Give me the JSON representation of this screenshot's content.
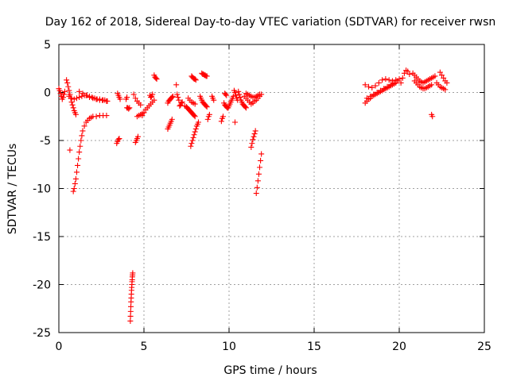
{
  "chart_data": {
    "type": "scatter",
    "title": "Day 162 of 2018, Sidereal Day-to-day VTEC variation (SDTVAR) for receiver rwsn",
    "xlabel": "GPS time / hours",
    "ylabel": "SDTVAR / TECUs",
    "xlim": [
      0,
      25
    ],
    "ylim": [
      -25,
      5
    ],
    "xticks": [
      0,
      5,
      10,
      15,
      20,
      25
    ],
    "yticks": [
      5,
      0,
      -5,
      -10,
      -15,
      -20,
      -25
    ],
    "grid": true,
    "marker": "+",
    "color": "#ff0000",
    "segments": [
      {
        "name": "arc-0.0",
        "x": [
          0.0,
          0.05,
          0.1,
          0.15,
          0.2,
          0.25,
          0.3,
          0.35
        ],
        "y": [
          0.4,
          0.2,
          -0.1,
          -0.4,
          -0.7,
          -0.5,
          -0.2,
          0.1
        ]
      },
      {
        "name": "arc-0.5",
        "x": [
          0.45,
          0.5,
          0.55,
          0.6,
          0.65,
          0.7,
          0.75,
          0.8,
          0.85,
          0.9,
          0.95,
          1.0
        ],
        "y": [
          1.3,
          1.0,
          0.6,
          0.2,
          -0.2,
          -0.6,
          -1.0,
          -1.3,
          -1.6,
          -1.9,
          -2.1,
          -2.3
        ]
      },
      {
        "name": "flat-0.6-2.8",
        "x": [
          0.6,
          0.75,
          0.9,
          1.05,
          1.2,
          1.35,
          1.5,
          1.65,
          1.8,
          1.95,
          2.1,
          2.25,
          2.4,
          2.55,
          2.7,
          2.85
        ],
        "y": [
          -0.4,
          -0.6,
          -0.7,
          -0.6,
          -0.5,
          -0.4,
          -0.3,
          -0.3,
          -0.4,
          -0.5,
          -0.6,
          -0.7,
          -0.7,
          -0.8,
          -0.8,
          -0.9
        ]
      },
      {
        "name": "flat-1.2-2.9",
        "x": [
          1.2,
          1.4,
          1.6,
          1.8,
          2.0,
          2.2,
          2.4,
          2.6,
          2.8
        ],
        "y": [
          0.1,
          -0.1,
          -0.3,
          -0.5,
          -0.6,
          -0.7,
          -0.8,
          -0.8,
          -0.9
        ]
      },
      {
        "name": "recovery",
        "x": [
          0.85,
          0.9,
          0.95,
          1.0,
          1.05,
          1.1,
          1.15,
          1.2,
          1.25,
          1.3,
          1.35,
          1.4,
          1.5,
          1.6,
          1.7,
          1.8,
          1.9,
          2.0,
          2.2,
          2.4,
          2.6,
          2.8
        ],
        "y": [
          -10.3,
          -10.0,
          -9.5,
          -9.0,
          -8.3,
          -7.6,
          -6.9,
          -6.2,
          -5.6,
          -5.0,
          -4.5,
          -4.0,
          -3.5,
          -3.1,
          -2.9,
          -2.7,
          -2.6,
          -2.5,
          -2.5,
          -2.4,
          -2.4,
          -2.4
        ]
      },
      {
        "name": "single-0.6",
        "x": [
          0.65
        ],
        "y": [
          -6.0
        ]
      },
      {
        "name": "arc-3.4",
        "x": [
          3.4,
          3.45,
          3.5,
          3.55
        ],
        "y": [
          -5.3,
          -5.1,
          -4.9,
          -4.8
        ]
      },
      {
        "name": "arc-3.5",
        "x": [
          3.45,
          3.5,
          3.55,
          3.6
        ],
        "y": [
          -0.1,
          -0.3,
          -0.5,
          -0.7
        ]
      },
      {
        "name": "arc-3.9",
        "x": [
          3.95,
          4.0
        ],
        "y": [
          -0.7,
          -0.5
        ]
      },
      {
        "name": "arc-4.0",
        "x": [
          4.0,
          4.05,
          4.1,
          4.15
        ],
        "y": [
          -1.6,
          -1.6,
          -1.7,
          -1.6
        ]
      },
      {
        "name": "arc-4.2-neg",
        "x": [
          4.2,
          4.21,
          4.22,
          4.23,
          4.24,
          4.25,
          4.26,
          4.27,
          4.28,
          4.29,
          4.3,
          4.31,
          4.32,
          4.33,
          4.34
        ],
        "y": [
          -23.8,
          -23.3,
          -22.8,
          -22.3,
          -21.8,
          -21.4,
          -21.0,
          -20.6,
          -20.3,
          -20.0,
          -19.7,
          -19.5,
          -19.2,
          -19.0,
          -18.8
        ]
      },
      {
        "name": "arc-4.6",
        "x": [
          4.5,
          4.55,
          4.6,
          4.65
        ],
        "y": [
          -5.2,
          -5.0,
          -4.8,
          -4.6
        ]
      },
      {
        "name": "arc-4.5",
        "x": [
          4.4,
          4.5,
          4.6,
          4.7,
          4.8
        ],
        "y": [
          -0.2,
          -0.6,
          -0.9,
          -1.1,
          -1.3
        ]
      },
      {
        "name": "arc-4.6b",
        "x": [
          4.6,
          4.7,
          4.8,
          4.9,
          5.0
        ],
        "y": [
          -2.5,
          -2.4,
          -2.3,
          -2.2,
          -2.1
        ]
      },
      {
        "name": "arc-5.0",
        "x": [
          4.9,
          5.0,
          5.1,
          5.2,
          5.3,
          5.4,
          5.5,
          5.6
        ],
        "y": [
          -2.4,
          -2.1,
          -1.8,
          -1.6,
          -1.4,
          -1.2,
          -1.0,
          -0.8
        ]
      },
      {
        "name": "arc-5.4",
        "x": [
          5.35,
          5.4,
          5.45,
          5.5
        ],
        "y": [
          -0.3,
          -0.5,
          -0.4,
          -0.2
        ]
      },
      {
        "name": "arc-5.7",
        "x": [
          5.6,
          5.65,
          5.7,
          5.75
        ],
        "y": [
          1.8,
          1.6,
          1.5,
          1.4
        ]
      },
      {
        "name": "arc-6.5",
        "x": [
          6.4,
          6.45,
          6.5,
          6.55,
          6.6,
          6.65
        ],
        "y": [
          -3.8,
          -3.6,
          -3.4,
          -3.2,
          -3.0,
          -2.8
        ]
      },
      {
        "name": "arc-6.5b",
        "x": [
          6.4,
          6.45,
          6.5,
          6.55,
          6.6,
          6.65,
          6.7
        ],
        "y": [
          -1.1,
          -0.9,
          -0.8,
          -0.7,
          -0.6,
          -0.5,
          -0.4
        ]
      },
      {
        "name": "arc-7.0",
        "x": [
          6.95,
          7.0,
          7.05
        ],
        "y": [
          -0.2,
          -0.5,
          -0.8
        ]
      },
      {
        "name": "single-6.9",
        "x": [
          6.9
        ],
        "y": [
          0.8
        ]
      },
      {
        "name": "arc-7.2",
        "x": [
          7.1,
          7.15,
          7.2,
          7.25
        ],
        "y": [
          -1.4,
          -1.3,
          -1.1,
          -1.0
        ]
      },
      {
        "name": "arc-7.6",
        "x": [
          7.6,
          7.7,
          7.8,
          7.9,
          8.0
        ],
        "y": [
          -0.6,
          -0.8,
          -1.0,
          -1.1,
          -1.2
        ]
      },
      {
        "name": "arc-7.5",
        "x": [
          7.4,
          7.5,
          7.55,
          7.6,
          7.65,
          7.7,
          7.75,
          7.8,
          7.85,
          7.9,
          7.95,
          8.0
        ],
        "y": [
          -1.4,
          -1.5,
          -1.6,
          -1.7,
          -1.8,
          -1.9,
          -2.0,
          -2.1,
          -2.2,
          -2.3,
          -2.4,
          -2.5
        ]
      },
      {
        "name": "arc-7.8",
        "x": [
          7.75,
          7.8,
          7.85,
          7.9,
          7.95,
          8.0,
          8.05,
          8.1,
          8.15,
          8.2
        ],
        "y": [
          -5.6,
          -5.3,
          -5.0,
          -4.7,
          -4.4,
          -4.1,
          -3.8,
          -3.5,
          -3.3,
          -3.1
        ]
      },
      {
        "name": "arc-7.9-top",
        "x": [
          7.8,
          7.85,
          7.9,
          7.95,
          8.0,
          8.05
        ],
        "y": [
          1.7,
          1.6,
          1.5,
          1.4,
          1.4,
          1.3
        ]
      },
      {
        "name": "arc-8.6",
        "x": [
          8.4,
          8.45,
          8.5,
          8.55,
          8.6,
          8.65,
          8.7
        ],
        "y": [
          2.0,
          1.9,
          1.9,
          1.8,
          1.8,
          1.7,
          1.7
        ]
      },
      {
        "name": "arc-8.5",
        "x": [
          8.3,
          8.35,
          8.4,
          8.45,
          8.5,
          8.55,
          8.6,
          8.65,
          8.7
        ],
        "y": [
          -0.4,
          -0.6,
          -0.8,
          -1.0,
          -1.1,
          -1.2,
          -1.3,
          -1.4,
          -1.5
        ]
      },
      {
        "name": "arc-8.7",
        "x": [
          8.75,
          8.8,
          8.85
        ],
        "y": [
          -2.8,
          -2.5,
          -2.3
        ]
      },
      {
        "name": "arc-9.0",
        "x": [
          9.0,
          9.05,
          9.1
        ],
        "y": [
          -0.4,
          -0.6,
          -0.8
        ]
      },
      {
        "name": "arc-9.7",
        "x": [
          9.7,
          9.75,
          9.8,
          9.85,
          9.9
        ],
        "y": [
          -1.1,
          -1.3,
          -1.4,
          -1.5,
          -1.6
        ]
      },
      {
        "name": "arc-9.6",
        "x": [
          9.55,
          9.6,
          9.65
        ],
        "y": [
          -3.0,
          -2.7,
          -2.5
        ]
      },
      {
        "name": "arc-9.8",
        "x": [
          9.75,
          9.8,
          9.85
        ],
        "y": [
          -0.1,
          -0.2,
          -0.3
        ]
      },
      {
        "name": "arc-10.1",
        "x": [
          9.95,
          10.0,
          10.05,
          10.1,
          10.15,
          10.2,
          10.25
        ],
        "y": [
          -1.6,
          -1.4,
          -1.2,
          -1.0,
          -0.8,
          -0.6,
          -0.4
        ]
      },
      {
        "name": "single-10.3",
        "x": [
          10.35
        ],
        "y": [
          -3.1
        ]
      },
      {
        "name": "arc-10.3",
        "x": [
          10.3,
          10.35,
          10.4,
          10.45,
          10.5
        ],
        "y": [
          0.2,
          0.0,
          -0.3,
          -0.6,
          -0.8
        ]
      },
      {
        "name": "arc-10.6",
        "x": [
          10.55,
          10.6,
          10.65,
          10.7,
          10.75,
          10.8,
          10.85,
          10.9,
          10.95,
          11.0
        ],
        "y": [
          0.1,
          -0.2,
          -0.5,
          -0.8,
          -1.0,
          -1.2,
          -1.3,
          -1.4,
          -1.5,
          -1.6
        ]
      },
      {
        "name": "arc-11.2",
        "x": [
          10.9,
          11.0,
          11.1,
          11.2,
          11.3,
          11.4,
          11.5,
          11.6,
          11.7,
          11.8,
          11.9
        ],
        "y": [
          -0.4,
          -0.6,
          -0.8,
          -1.0,
          -1.2,
          -1.1,
          -0.9,
          -0.8,
          -0.6,
          -0.4,
          -0.2
        ]
      },
      {
        "name": "arc-11.4",
        "x": [
          11.0,
          11.1,
          11.2,
          11.3,
          11.4,
          11.5,
          11.6,
          11.7,
          11.8
        ],
        "y": [
          -0.1,
          -0.2,
          -0.3,
          -0.4,
          -0.5,
          -0.5,
          -0.4,
          -0.3,
          -0.2
        ]
      },
      {
        "name": "arc-11.3-neg",
        "x": [
          11.3,
          11.35,
          11.4,
          11.45,
          11.5,
          11.55
        ],
        "y": [
          -5.7,
          -5.3,
          -4.9,
          -4.6,
          -4.3,
          -4.0
        ]
      },
      {
        "name": "arc-11.7-neg",
        "x": [
          11.6,
          11.65,
          11.7,
          11.75,
          11.8,
          11.85,
          11.9
        ],
        "y": [
          -10.5,
          -9.9,
          -9.2,
          -8.5,
          -7.8,
          -7.1,
          -6.4
        ]
      },
      {
        "name": "arc-18.1",
        "x": [
          18.0,
          18.1,
          18.2,
          18.3,
          18.4,
          18.5,
          18.6,
          18.7,
          18.8,
          18.9,
          19.0,
          19.1,
          19.2,
          19.3,
          19.4,
          19.5,
          19.6,
          19.7,
          19.8
        ],
        "y": [
          -1.1,
          -0.9,
          -0.7,
          -0.6,
          -0.4,
          -0.3,
          -0.2,
          -0.1,
          0.0,
          0.1,
          0.2,
          0.3,
          0.4,
          0.5,
          0.6,
          0.7,
          0.8,
          0.9,
          1.0
        ]
      },
      {
        "name": "arc-18.0-top",
        "x": [
          18.0,
          18.2,
          18.4,
          18.6,
          18.8,
          19.0,
          19.2,
          19.4,
          19.6,
          19.8,
          20.0
        ],
        "y": [
          0.8,
          0.6,
          0.5,
          0.7,
          1.0,
          1.3,
          1.4,
          1.3,
          1.2,
          1.3,
          1.4
        ]
      },
      {
        "name": "arc-18.3",
        "x": [
          18.1,
          18.3,
          18.5,
          18.7,
          18.9,
          19.1,
          19.3,
          19.5,
          19.7,
          19.9
        ],
        "y": [
          -0.6,
          -0.4,
          -0.2,
          0.0,
          0.2,
          0.4,
          0.6,
          0.8,
          1.0,
          1.2
        ]
      },
      {
        "name": "arc-20.3",
        "x": [
          20.1,
          20.2,
          20.3,
          20.4,
          20.5,
          20.6
        ],
        "y": [
          1.0,
          1.5,
          2.0,
          2.3,
          2.2,
          1.9
        ]
      },
      {
        "name": "arc-21.0",
        "x": [
          20.8,
          20.9,
          21.0,
          21.1,
          21.2,
          21.3,
          21.4,
          21.5,
          21.6,
          21.7,
          21.8,
          21.9,
          22.0,
          22.1
        ],
        "y": [
          2.0,
          1.8,
          1.6,
          1.4,
          1.2,
          1.1,
          1.0,
          1.1,
          1.2,
          1.3,
          1.4,
          1.5,
          1.6,
          1.7
        ]
      },
      {
        "name": "arc-21.2",
        "x": [
          20.9,
          21.0,
          21.1,
          21.2,
          21.3,
          21.4,
          21.5,
          21.6,
          21.7,
          21.8,
          21.9
        ],
        "y": [
          1.2,
          1.0,
          0.8,
          0.6,
          0.5,
          0.4,
          0.4,
          0.5,
          0.6,
          0.7,
          0.8
        ]
      },
      {
        "name": "single-21.9",
        "x": [
          21.9,
          21.95
        ],
        "y": [
          -2.3,
          -2.5
        ]
      },
      {
        "name": "arc-22.6",
        "x": [
          22.4,
          22.5,
          22.6,
          22.7,
          22.8
        ],
        "y": [
          2.1,
          1.8,
          1.5,
          1.2,
          1.0
        ]
      },
      {
        "name": "arc-22.4",
        "x": [
          22.2,
          22.3,
          22.4,
          22.5,
          22.6,
          22.7
        ],
        "y": [
          1.0,
          0.8,
          0.6,
          0.5,
          0.4,
          0.3
        ]
      }
    ]
  }
}
